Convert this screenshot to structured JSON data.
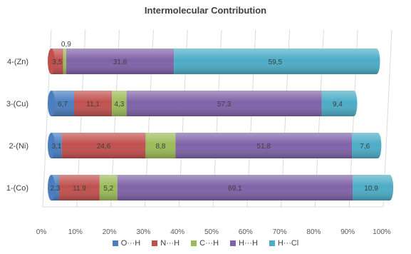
{
  "chart_data": {
    "type": "bar",
    "orientation": "horizontal",
    "stacked": "percent",
    "style": "3d-cylinder",
    "title": "Intermolecular Contribution",
    "categories": [
      "1-(Co)",
      "2-(Ni)",
      "3-(Cu)",
      "4-(Zn)"
    ],
    "xlim": [
      0,
      100
    ],
    "x_ticks": [
      "0%",
      "10%",
      "20%",
      "30%",
      "40%",
      "50%",
      "60%",
      "70%",
      "80%",
      "90%",
      "100%"
    ],
    "grid": true,
    "legend_position": "bottom",
    "series": [
      {
        "name": "O···H",
        "color": "#4a7ebf",
        "values": [
          2.3,
          3.1,
          6.7,
          0
        ],
        "labels": [
          "2,3",
          "3,1",
          "6,7",
          ""
        ]
      },
      {
        "name": "N···H",
        "color": "#c0504d",
        "values": [
          11.9,
          24.6,
          11.1,
          3.5
        ],
        "labels": [
          "11,9",
          "24,6",
          "11,1",
          "3,5"
        ]
      },
      {
        "name": "C···H",
        "color": "#9bbb59",
        "values": [
          5.2,
          8.8,
          4.3,
          0.9
        ],
        "labels": [
          "5,2",
          "8,8",
          "4,3",
          "0,9"
        ]
      },
      {
        "name": "H···H",
        "color": "#7f62a8",
        "values": [
          69.1,
          51.8,
          57.3,
          31.6
        ],
        "labels": [
          "69,1",
          "51,8",
          "57,3",
          "31,6"
        ]
      },
      {
        "name": "H···Cl",
        "color": "#4bacc6",
        "values": [
          10.9,
          7.6,
          9.4,
          59.5
        ],
        "labels": [
          "10,9",
          "7,6",
          "9,4",
          "59,5"
        ]
      }
    ]
  }
}
